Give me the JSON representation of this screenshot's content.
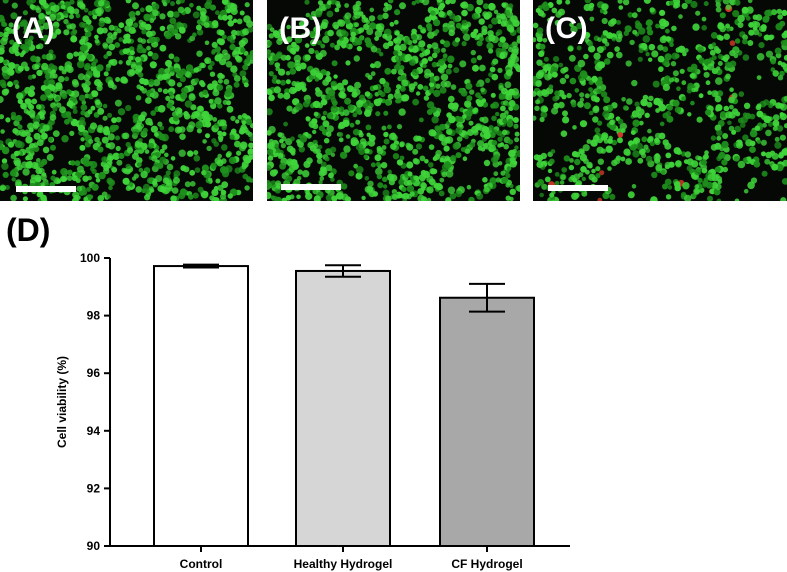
{
  "panels": [
    {
      "label": "(A)",
      "density": 1.0,
      "red_cells": 0.0
    },
    {
      "label": "(B)",
      "density": 0.95,
      "red_cells": 0.0
    },
    {
      "label": "(C)",
      "density": 0.75,
      "red_cells": 0.01
    }
  ],
  "chart_label": "(D)",
  "colors": {
    "cell_green": "#3fd43a",
    "cell_green_dark": "#1e8f1c",
    "cell_red": "#d23a2a",
    "background_dark": "#050805",
    "bar_control": "#ffffff",
    "bar_healthy": "#d6d6d6",
    "bar_cf": "#a8a8a8"
  },
  "chart_data": {
    "type": "bar",
    "categories": [
      "Control",
      "Healthy Hydrogel",
      "CF Hydrogel"
    ],
    "values": [
      99.72,
      99.55,
      98.62
    ],
    "errors": [
      0.05,
      0.2,
      0.48
    ],
    "title": "",
    "xlabel": "",
    "ylabel": "Cell viability (%)",
    "ylim": [
      90,
      100
    ],
    "yticks": [
      "90",
      "92",
      "94",
      "96",
      "98",
      "100"
    ],
    "grid": false
  }
}
